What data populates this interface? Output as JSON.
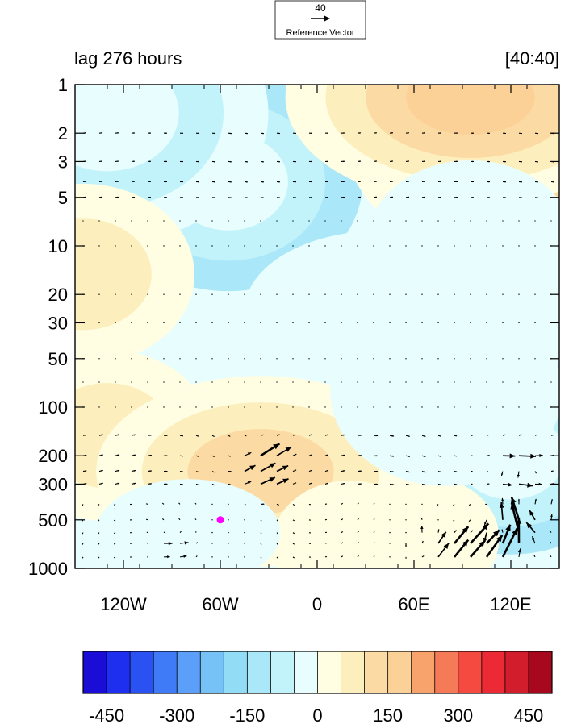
{
  "chart_data": {
    "type": "heatmap",
    "title_left": "lag 276 hours",
    "title_right": "[40:40]",
    "reference_vector": {
      "value": "40",
      "label": "Reference Vector"
    },
    "x_axis": {
      "range": [
        -150,
        150
      ],
      "tick_values": [
        -120,
        -60,
        0,
        60,
        120
      ],
      "tick_labels": [
        "120W",
        "60W",
        "0",
        "60E",
        "120E"
      ],
      "minor_step": 20
    },
    "y_axis": {
      "scale": "log",
      "reversed": true,
      "range": [
        1,
        1000
      ],
      "tick_values": [
        1,
        2,
        3,
        5,
        10,
        20,
        30,
        50,
        100,
        200,
        300,
        500,
        1000
      ],
      "tick_labels": [
        "1",
        "2",
        "3",
        "5",
        "10",
        "20",
        "30",
        "50",
        "100",
        "200",
        "300",
        "500",
        "1000"
      ]
    },
    "colorbar": {
      "levels": [
        -450,
        -400,
        -350,
        -300,
        -250,
        -200,
        -150,
        -100,
        -50,
        0,
        50,
        100,
        150,
        200,
        250,
        300,
        350,
        400,
        450
      ],
      "colors": [
        "#1a0dd6",
        "#1e2ff0",
        "#2a52f3",
        "#3f7bf7",
        "#5b9ff8",
        "#76c2f6",
        "#93dcf6",
        "#a9e7f9",
        "#c2f3fb",
        "#e8fdfd",
        "#fffde2",
        "#fdefbd",
        "#fbdba3",
        "#fbd198",
        "#f8a36c",
        "#f57a58",
        "#f44a3f",
        "#ec2a35",
        "#d21e2c",
        "#a8081e"
      ],
      "tick_values": [
        -450,
        -300,
        -150,
        0,
        150,
        300,
        450
      ],
      "tick_labels": [
        "-450",
        "-300",
        "-150",
        "0",
        "150",
        "300",
        "450"
      ]
    },
    "marker": {
      "lon": -60,
      "p": 500,
      "color": "#ff00ff"
    },
    "field_centers": [
      {
        "lon": -55,
        "p": 4,
        "value": -200
      },
      {
        "lon": -130,
        "p": 1.5,
        "value": -150
      },
      {
        "lon": 110,
        "p": 1.5,
        "value": -120
      },
      {
        "lon": 120,
        "p": 200,
        "value": -170
      },
      {
        "lon": 135,
        "p": 1.5,
        "value": 210
      },
      {
        "lon": 95,
        "p": 1.2,
        "value": 160
      },
      {
        "lon": -130,
        "p": 150,
        "value": 80
      },
      {
        "lon": -145,
        "p": 15,
        "value": 70
      },
      {
        "lon": -35,
        "p": 250,
        "value": 130
      },
      {
        "lon": 20,
        "p": 700,
        "value": 30
      },
      {
        "lon": 65,
        "p": 650,
        "value": 15
      },
      {
        "lon": 40,
        "p": 25,
        "value": -90
      },
      {
        "lon": 80,
        "p": 80,
        "value": -100
      },
      {
        "lon": 95,
        "p": 10,
        "value": -60
      },
      {
        "lon": -80,
        "p": 600,
        "value": -25
      }
    ],
    "strong_vectors": [
      {
        "lon": 75,
        "p": 800,
        "u": 6,
        "v": 8
      },
      {
        "lon": 82,
        "p": 780,
        "u": 7,
        "v": 9
      },
      {
        "lon": 90,
        "p": 760,
        "u": 8,
        "v": 9
      },
      {
        "lon": 97,
        "p": 750,
        "u": 9,
        "v": 10
      },
      {
        "lon": 104,
        "p": 740,
        "u": 10,
        "v": 9
      },
      {
        "lon": 113,
        "p": 820,
        "u": 12,
        "v": 22
      },
      {
        "lon": 118,
        "p": 500,
        "u": 0,
        "v": 25
      },
      {
        "lon": 124,
        "p": 650,
        "u": 2,
        "v": 20
      },
      {
        "lon": 112,
        "p": 560,
        "u": 1,
        "v": -16
      },
      {
        "lon": 105,
        "p": 640,
        "u": -6,
        "v": -6
      },
      {
        "lon": 130,
        "p": 560,
        "u": -10,
        "v": 4
      },
      {
        "lon": 140,
        "p": 450,
        "u": 3,
        "v": 6
      },
      {
        "lon": 65,
        "p": 620,
        "u": 0,
        "v": 8
      },
      {
        "lon": 60,
        "p": 700,
        "u": 0,
        "v": -6
      },
      {
        "lon": 118,
        "p": 200,
        "u": 10,
        "v": 0
      },
      {
        "lon": 128,
        "p": 210,
        "u": 11,
        "v": 0
      },
      {
        "lon": 118,
        "p": 300,
        "u": 9,
        "v": 0
      },
      {
        "lon": 128,
        "p": 300,
        "u": 10,
        "v": 0
      },
      {
        "lon": 118,
        "p": 250,
        "u": -8,
        "v": -4
      },
      {
        "lon": 128,
        "p": 250,
        "u": -9,
        "v": -4
      },
      {
        "lon": -35,
        "p": 200,
        "u": 8,
        "v": 6
      },
      {
        "lon": -28,
        "p": 200,
        "u": 8,
        "v": 5
      },
      {
        "lon": -42,
        "p": 250,
        "u": 7,
        "v": 5
      },
      {
        "lon": -28,
        "p": 280,
        "u": 8,
        "v": 4
      },
      {
        "lon": -35,
        "p": 330,
        "u": 6,
        "v": 3
      },
      {
        "lon": -95,
        "p": 750,
        "u": 7,
        "v": -1
      },
      {
        "lon": -85,
        "p": 760,
        "u": 7,
        "v": 0
      }
    ]
  }
}
